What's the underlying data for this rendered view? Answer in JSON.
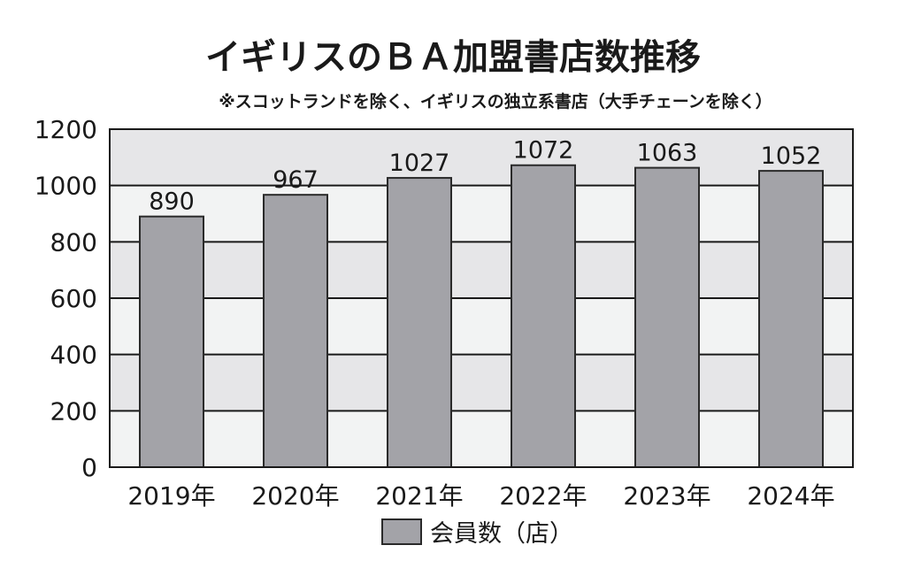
{
  "colors": {
    "bar_fill": "#a3a3a8",
    "bar_stroke": "#2a2a2a",
    "band_light": "#f2f3f3",
    "band_dark": "#e6e6e8",
    "grid": "#1a1a1a",
    "text": "#1a1a1a"
  },
  "chart_data": {
    "type": "bar",
    "title": "イギリスのＢＡ加盟書店数推移",
    "subtitle": "※スコットランドを除く、イギリスの独立系書店（大手チェーンを除く）",
    "categories": [
      "2019年",
      "2020年",
      "2021年",
      "2022年",
      "2023年",
      "2024年"
    ],
    "series": [
      {
        "name": "会員数（店）",
        "values": [
          890,
          967,
          1027,
          1072,
          1063,
          1052
        ]
      }
    ],
    "data_labels": [
      "890",
      "967",
      "1027",
      "1072",
      "1063",
      "1052"
    ],
    "y_ticks": [
      0,
      200,
      400,
      600,
      800,
      1000,
      1200
    ],
    "y_tick_labels": [
      "0",
      "200",
      "400",
      "600",
      "800",
      "1000",
      "1200"
    ],
    "ylim": [
      0,
      1200
    ],
    "grid": true,
    "legend_position": "bottom"
  }
}
